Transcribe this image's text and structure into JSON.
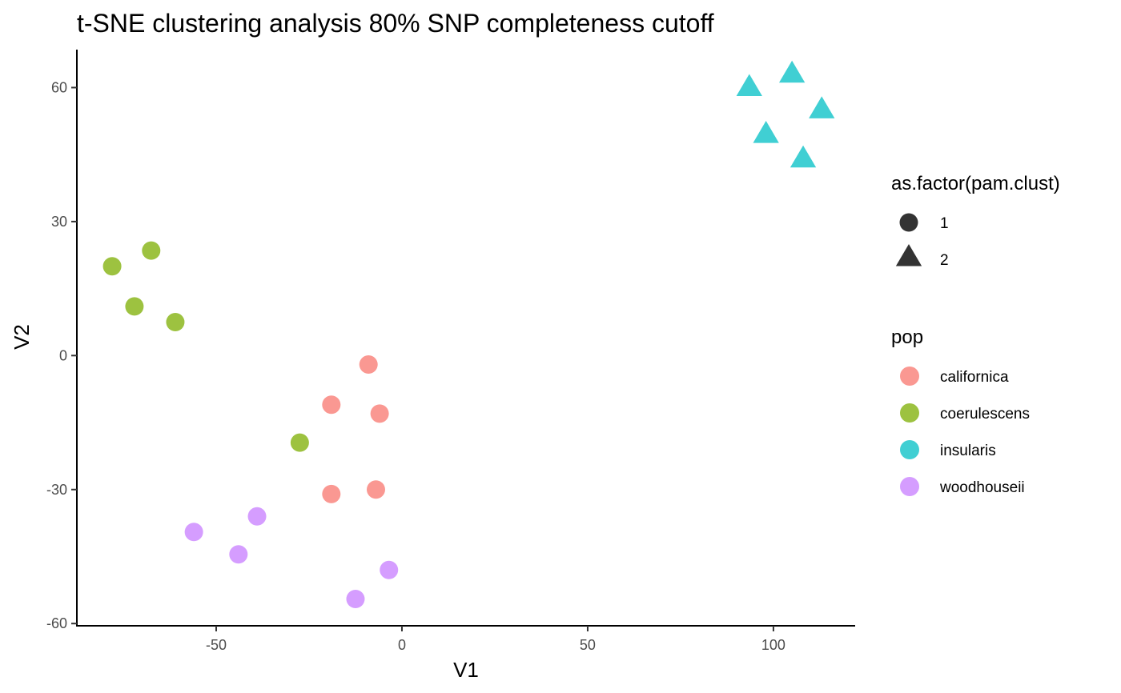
{
  "chart_data": {
    "type": "scatter",
    "title": "t-SNE clustering analysis 80% SNP completeness cutoff",
    "xlabel": "V1",
    "ylabel": "V2",
    "xlim": [
      -87.5,
      122
    ],
    "ylim": [
      -60.5,
      68.5
    ],
    "x_ticks": [
      -50,
      0,
      50,
      100
    ],
    "y_ticks": [
      -60,
      -30,
      0,
      30,
      60
    ],
    "grid": false,
    "legend_placement": "right",
    "shape_legend": {
      "title": "as.factor(pam.clust)",
      "entries": [
        {
          "label": "1",
          "shape": "circle"
        },
        {
          "label": "2",
          "shape": "triangle"
        }
      ]
    },
    "color_legend": {
      "title": "pop",
      "entries": [
        {
          "label": "californica",
          "color": "#F8766D"
        },
        {
          "label": "coerulescens",
          "color": "#7CAE00"
        },
        {
          "label": "insularis",
          "color": "#00BFC4"
        },
        {
          "label": "woodhouseii",
          "color": "#C77CFF"
        }
      ]
    },
    "series": [
      {
        "name": "californica",
        "cluster": "1",
        "points": [
          {
            "x": -9,
            "y": -2
          },
          {
            "x": -19,
            "y": -11
          },
          {
            "x": -6,
            "y": -13
          },
          {
            "x": -19,
            "y": -31
          },
          {
            "x": -7,
            "y": -30
          }
        ]
      },
      {
        "name": "coerulescens",
        "cluster": "1",
        "points": [
          {
            "x": -78,
            "y": 20
          },
          {
            "x": -67.5,
            "y": 23.5
          },
          {
            "x": -72,
            "y": 11
          },
          {
            "x": -61,
            "y": 7.5
          },
          {
            "x": -27.5,
            "y": -19.5
          }
        ]
      },
      {
        "name": "insularis",
        "cluster": "2",
        "points": [
          {
            "x": 105,
            "y": 63
          },
          {
            "x": 93.5,
            "y": 60
          },
          {
            "x": 113,
            "y": 55
          },
          {
            "x": 98,
            "y": 49.5
          },
          {
            "x": 108,
            "y": 44
          }
        ]
      },
      {
        "name": "woodhouseii",
        "cluster": "1",
        "points": [
          {
            "x": -56,
            "y": -39.5
          },
          {
            "x": -39,
            "y": -36
          },
          {
            "x": -44,
            "y": -44.5
          },
          {
            "x": -3.5,
            "y": -48
          },
          {
            "x": -12.5,
            "y": -54.5
          }
        ]
      }
    ]
  }
}
